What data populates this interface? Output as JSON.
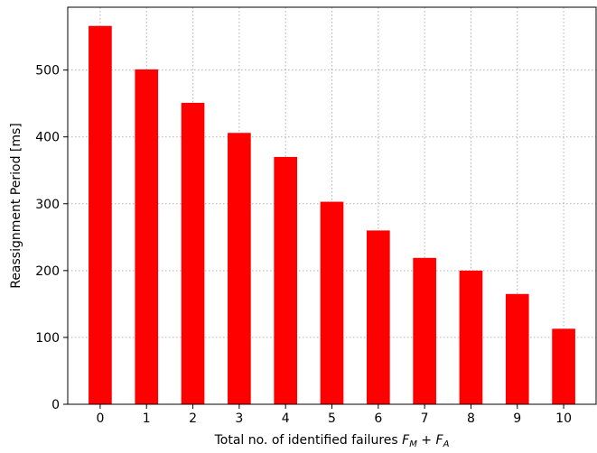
{
  "chart_data": {
    "type": "bar",
    "title": "",
    "xlabel": "Total no. of identified failures ",
    "xlabel_math": {
      "base1": "F",
      "sub1": "M",
      "op": " + ",
      "base2": "F",
      "sub2": "A"
    },
    "ylabel": "Reassignment Period [ms]",
    "categories": [
      "0",
      "1",
      "2",
      "3",
      "4",
      "5",
      "6",
      "7",
      "8",
      "9",
      "10"
    ],
    "values": [
      566,
      501,
      451,
      406,
      370,
      303,
      260,
      219,
      200,
      165,
      113
    ],
    "ylim": [
      0,
      594
    ],
    "yticks": [
      0,
      100,
      200,
      300,
      400,
      500
    ],
    "bar_color": "#ff0000",
    "grid": true,
    "grid_style": "dotted",
    "grid_color": "#b0b0b0",
    "legend": "none"
  }
}
